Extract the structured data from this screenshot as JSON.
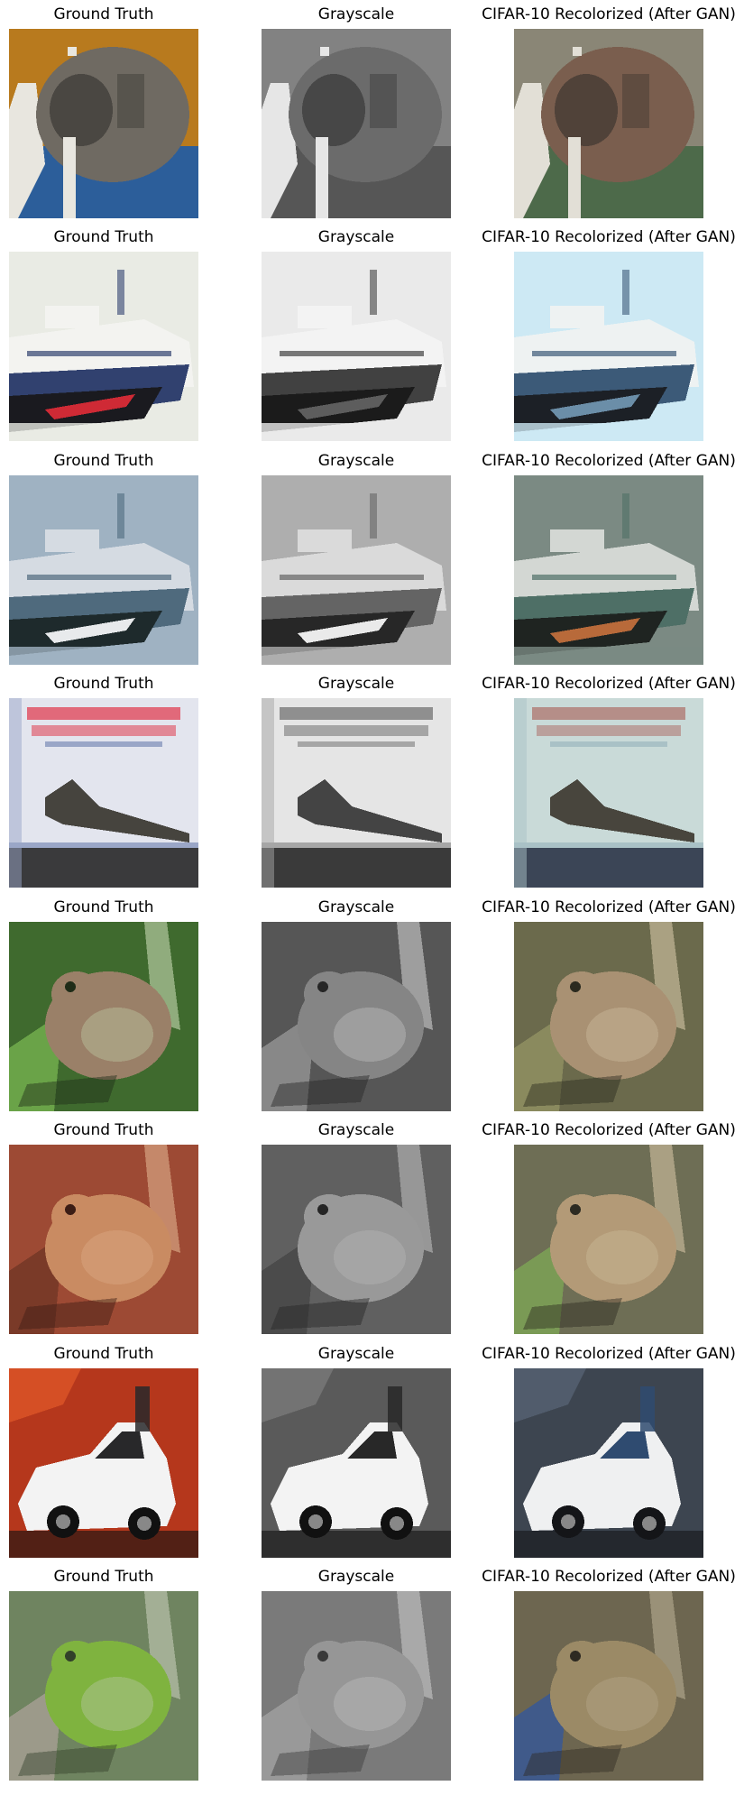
{
  "columns": [
    "Ground Truth",
    "Grayscale",
    "CIFAR-10 Recolorized (After GAN)"
  ],
  "rows": [
    {
      "subject": "cat",
      "gt": {
        "bg": "#b87a1e",
        "main": "#6f6a62",
        "accent": "#2c5e9a",
        "dark": "#2b2a28",
        "light": "#e8e6df"
      },
      "rc": {
        "bg": "#8a8676",
        "main": "#7a5e4e",
        "accent": "#4d6a4a",
        "dark": "#2d2b28",
        "light": "#e2dfd6"
      }
    },
    {
      "subject": "ship",
      "gt": {
        "bg": "#e9ebe4",
        "main": "#f3f3f0",
        "accent": "#31416f",
        "dark": "#1a1a1f",
        "light": "#cf2a35"
      },
      "rc": {
        "bg": "#cde9f4",
        "main": "#eef2f2",
        "accent": "#3c5a78",
        "dark": "#1c2026",
        "light": "#6b8ea8"
      }
    },
    {
      "subject": "ship",
      "gt": {
        "bg": "#9fb2c2",
        "main": "#d5dbe2",
        "accent": "#4f6a7d",
        "dark": "#1e2a2c",
        "light": "#e8eaec"
      },
      "rc": {
        "bg": "#7b8a83",
        "main": "#d3d7d3",
        "accent": "#4e6f66",
        "dark": "#1f2421",
        "light": "#b86a3a"
      }
    },
    {
      "subject": "airplane",
      "gt": {
        "bg": "#e3e5ee",
        "main": "#46443e",
        "accent": "#e04a5c",
        "dark": "#3a3a3c",
        "light": "#9aa6c7"
      },
      "rc": {
        "bg": "#c9dad8",
        "main": "#48453d",
        "accent": "#b07a74",
        "dark": "#3b4556",
        "light": "#a9c1c6"
      }
    },
    {
      "subject": "frog",
      "gt": {
        "bg": "#3f6a2e",
        "main": "#9a8068",
        "accent": "#6aa348",
        "dark": "#1f2c18",
        "light": "#c7d9b2"
      },
      "rc": {
        "bg": "#6b6a4c",
        "main": "#a99173",
        "accent": "#8a8a5e",
        "dark": "#2b2a1f",
        "light": "#d3c6a6"
      }
    },
    {
      "subject": "frog",
      "gt": {
        "bg": "#9d4a34",
        "main": "#c98b62",
        "accent": "#7a3a28",
        "dark": "#3c1d15",
        "light": "#e0b28f"
      },
      "rc": {
        "bg": "#6e6e55",
        "main": "#b39a77",
        "accent": "#7a9a55",
        "dark": "#2d2b22",
        "light": "#d2c2a1"
      }
    },
    {
      "subject": "automobile",
      "gt": {
        "bg": "#b5371c",
        "main": "#f3f3f3",
        "accent": "#28282a",
        "dark": "#111",
        "light": "#e25a2a"
      },
      "rc": {
        "bg": "#3d4550",
        "main": "#eff0f1",
        "accent": "#2f4b70",
        "dark": "#141518",
        "light": "#5a6677"
      }
    },
    {
      "subject": "frog",
      "gt": {
        "bg": "#6f8460",
        "main": "#7fb33f",
        "accent": "#9c9a8a",
        "dark": "#32402a",
        "light": "#c7ccb9"
      },
      "rc": {
        "bg": "#6d6650",
        "main": "#9b8a66",
        "accent": "#405a8a",
        "dark": "#2e2a22",
        "light": "#b9ad93"
      }
    }
  ]
}
